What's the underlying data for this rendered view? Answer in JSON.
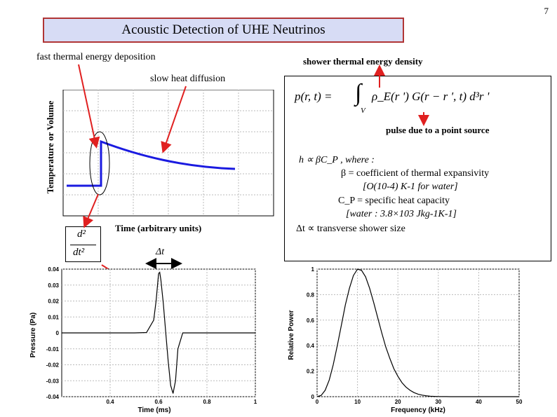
{
  "page_number": "7",
  "title": "Acoustic Detection of UHE Neutrinos",
  "labels": {
    "fast_deposition": "fast thermal energy deposition",
    "shower_density": "shower thermal energy density",
    "slow_diffusion": "slow heat diffusion",
    "y_axis_top": "Temperature or Volume",
    "x_axis_top": "Time (arbitrary units)",
    "point_source": "pulse due to a point source",
    "delta_t": "Δt",
    "h": "h"
  },
  "formula": {
    "lhs": "p(r, t) =",
    "integral": "∫",
    "integral_sub": "V",
    "rhs": "ρ_E(r ') G(r − r ', t) d³r '"
  },
  "second_derivative": {
    "num": "d²",
    "den": "dt²"
  },
  "info_lines": [
    "h ∝ βC_P , where :",
    "β = coefficient of thermal expansivity",
    "[O(10-4) K-1 for water]",
    "C_P = specific heat capacity",
    "[water : 3.8×103 Jkg-1K-1]",
    "Δt ∝ transverse shower size"
  ],
  "pressure_chart": {
    "type": "line",
    "xlabel": "Time (ms)",
    "ylabel": "Pressure (Pa)",
    "xlim": [
      0.2,
      1.0
    ],
    "ylim": [
      -0.04,
      0.04
    ],
    "xticks": [
      "0.4",
      "0.6",
      "0.8",
      "1"
    ],
    "yticks": [
      "0.04",
      "0.03",
      "0.02",
      "0.01",
      "0",
      "-0.01",
      "-0.02",
      "-0.03",
      "-0.04"
    ]
  },
  "spectrum_chart": {
    "type": "line",
    "xlabel": "Frequency (kHz)",
    "ylabel": "Relative Power",
    "xlim": [
      0,
      50
    ],
    "ylim": [
      0,
      1
    ],
    "xticks": [
      "0",
      "10",
      "20",
      "30",
      "40",
      "50"
    ],
    "yticks": [
      "1",
      "0.8",
      "0.6",
      "0.4",
      "0.2",
      "0"
    ]
  },
  "chart_data": [
    {
      "type": "line",
      "title": "",
      "xlabel": "Time (ms)",
      "ylabel": "Pressure (Pa)",
      "xlim": [
        0.2,
        1.0
      ],
      "ylim": [
        -0.04,
        0.04
      ],
      "x": [
        0.2,
        0.4,
        0.5,
        0.55,
        0.58,
        0.59,
        0.6,
        0.605,
        0.61,
        0.62,
        0.63,
        0.64,
        0.65,
        0.66,
        0.67,
        0.68,
        0.7,
        0.8,
        1.0
      ],
      "y": [
        0,
        0,
        0,
        0.0002,
        0.008,
        0.02,
        0.037,
        0.038,
        0.033,
        0.018,
        0.0,
        -0.018,
        -0.033,
        -0.038,
        -0.03,
        -0.01,
        0,
        0,
        0
      ]
    },
    {
      "type": "line",
      "title": "",
      "xlabel": "Frequency (kHz)",
      "ylabel": "Relative Power",
      "xlim": [
        0,
        50
      ],
      "ylim": [
        0,
        1
      ],
      "x": [
        0,
        1,
        2,
        3,
        4,
        5,
        6,
        7,
        8,
        9,
        10,
        11,
        12,
        13,
        14,
        15,
        16,
        17,
        18,
        19,
        20,
        21,
        22,
        23,
        24,
        25,
        26,
        27,
        28,
        29,
        30,
        31,
        32,
        33,
        34,
        35,
        36,
        37,
        38,
        39,
        40,
        50
      ],
      "y": [
        0.0,
        0.01,
        0.05,
        0.13,
        0.25,
        0.4,
        0.56,
        0.72,
        0.85,
        0.95,
        1.0,
        0.99,
        0.94,
        0.85,
        0.74,
        0.62,
        0.5,
        0.39,
        0.3,
        0.22,
        0.16,
        0.11,
        0.075,
        0.05,
        0.032,
        0.02,
        0.012,
        0.007,
        0.004,
        0.002,
        0.001,
        0.0006,
        0.0003,
        0.0002,
        0.0001,
        0.0,
        0.0,
        0.0,
        0.0,
        0.0,
        0.0,
        0.0
      ]
    }
  ]
}
